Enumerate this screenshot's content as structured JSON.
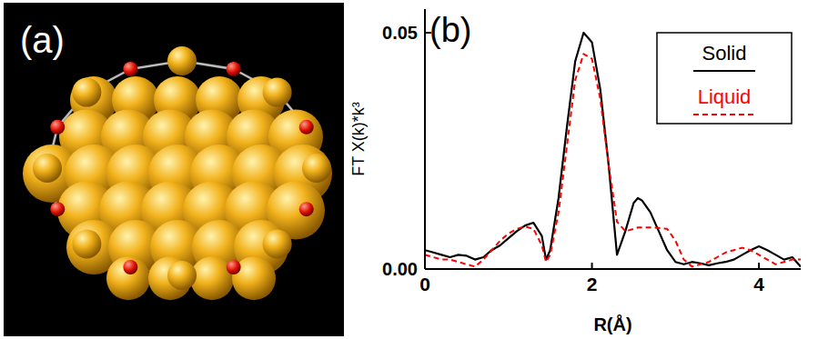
{
  "panel_a": {
    "label": "(a)"
  },
  "chart_data": {
    "type": "line",
    "title": "(b)",
    "x_label": "R(Å)",
    "y_label": "FT X(k)*k³",
    "x": [
      0,
      0.1,
      0.2,
      0.3,
      0.4,
      0.5,
      0.6,
      0.7,
      0.8,
      0.9,
      1.0,
      1.1,
      1.2,
      1.3,
      1.4,
      1.45,
      1.5,
      1.6,
      1.7,
      1.8,
      1.9,
      2.0,
      2.1,
      2.2,
      2.3,
      2.4,
      2.5,
      2.55,
      2.6,
      2.7,
      2.8,
      2.9,
      3.0,
      3.1,
      3.2,
      3.3,
      3.4,
      3.5,
      3.6,
      3.7,
      3.8,
      3.9,
      4.0,
      4.1,
      4.2,
      4.3,
      4.4,
      4.5
    ],
    "series": [
      {
        "name": "Solid",
        "color": "#000000",
        "line_style": "solid",
        "values": [
          0.004,
          0.0035,
          0.003,
          0.0025,
          0.003,
          0.0028,
          0.002,
          0.0025,
          0.004,
          0.005,
          0.0065,
          0.008,
          0.0092,
          0.0098,
          0.007,
          0.002,
          0.004,
          0.015,
          0.03,
          0.044,
          0.05,
          0.048,
          0.038,
          0.022,
          0.003,
          0.008,
          0.014,
          0.015,
          0.0145,
          0.012,
          0.008,
          0.004,
          0.0015,
          0.001,
          0.0015,
          0.0012,
          0.0008,
          0.0012,
          0.0015,
          0.002,
          0.003,
          0.004,
          0.0048,
          0.004,
          0.003,
          0.002,
          0.0025,
          0.0005
        ]
      },
      {
        "name": "Liquid",
        "color": "#ff0000",
        "line_style": "dashed",
        "values": [
          0.003,
          0.0025,
          0.002,
          0.002,
          0.0015,
          0.001,
          0.0005,
          0.002,
          0.004,
          0.006,
          0.0075,
          0.0085,
          0.009,
          0.0085,
          0.005,
          0.0015,
          0.003,
          0.012,
          0.026,
          0.04,
          0.0455,
          0.0445,
          0.036,
          0.022,
          0.01,
          0.008,
          0.0085,
          0.0088,
          0.0088,
          0.0088,
          0.0087,
          0.0085,
          0.006,
          0.002,
          0.0005,
          0.001,
          0.0015,
          0.0025,
          0.0035,
          0.004,
          0.0045,
          0.004,
          0.003,
          0.002,
          0.001,
          0.0015,
          0.002,
          0.002
        ]
      }
    ],
    "xlim": [
      0,
      4.5
    ],
    "xticks": [
      0,
      2,
      4
    ],
    "ylim": [
      0,
      0.055
    ],
    "yticks": [
      {
        "value": 0,
        "label": "0.00"
      },
      {
        "value": 0.05,
        "label": "0.05"
      }
    ],
    "grid": false,
    "legend": "upper right"
  }
}
